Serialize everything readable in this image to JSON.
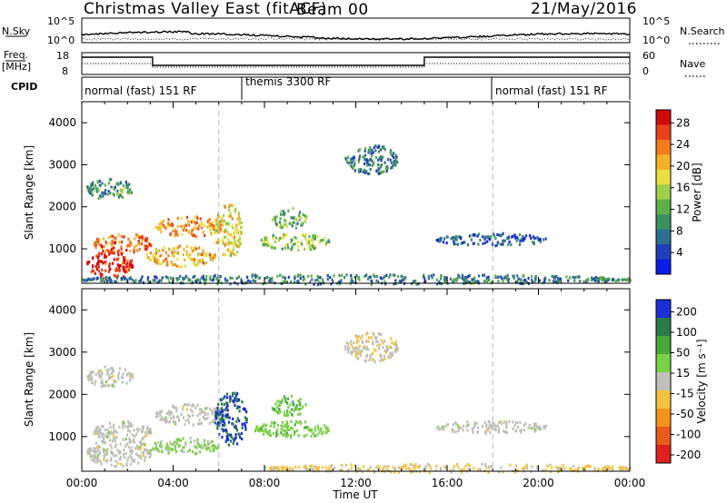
{
  "header": {
    "title": "Christmas Valley East (fitACF)",
    "beam": "Beam 00",
    "date": "21/May/2016"
  },
  "top_panels": {
    "nsky_label": "N.Sky",
    "nsky_ticks": [
      "10^5",
      "10^0"
    ],
    "nsearch_label": "N.Search",
    "nsearch_ticks": [
      "10^5",
      "10^0"
    ],
    "freq_label": "Freq.",
    "freq_unit": "[MHz]",
    "freq_ticks": [
      "18",
      "8"
    ],
    "nave_label": "Nave",
    "nave_ticks": [
      "60",
      "0"
    ],
    "cpid_label": "CPID",
    "cpid_segments": [
      {
        "label": "normal (fast) 151 RF",
        "start_hour": 0
      },
      {
        "label": "themis 3300 RF",
        "start_hour": 6
      },
      {
        "label": "normal (fast) 151 RF",
        "start_hour": 18
      }
    ]
  },
  "chart_data": [
    {
      "type": "heatmap",
      "panel": "power",
      "ylabel": "Slant Range [km]",
      "xlabel": "",
      "ylim": [
        180,
        4500
      ],
      "yticks": [
        1000,
        2000,
        3000,
        4000
      ],
      "xlim_hours": [
        0,
        24
      ],
      "colorbar": {
        "label": "Power [dB]",
        "range": [
          0,
          30
        ],
        "ticks": [
          "4",
          "8",
          "12",
          "16",
          "20",
          "24",
          "28"
        ],
        "colors": [
          "#0a1ee6",
          "#1f3fb8",
          "#2e6f8f",
          "#3d8f5f",
          "#5fae4a",
          "#9ed04a",
          "#e8e040",
          "#f6b226",
          "#f47c1c",
          "#e8401a",
          "#d10a0a"
        ]
      },
      "echo_regions": [
        {
          "t_start": 0.2,
          "t_end": 2.2,
          "r_low": 300,
          "r_high": 1000,
          "power_db": 28
        },
        {
          "t_start": 0.5,
          "t_end": 3.0,
          "r_low": 900,
          "r_high": 1400,
          "power_db": 24
        },
        {
          "t_start": 0.2,
          "t_end": 2.2,
          "r_low": 2200,
          "r_high": 2700,
          "power_db": 10
        },
        {
          "t_start": 3.2,
          "t_end": 6.2,
          "r_low": 1300,
          "r_high": 1800,
          "power_db": 22
        },
        {
          "t_start": 2.8,
          "t_end": 5.8,
          "r_low": 600,
          "r_high": 1100,
          "power_db": 20
        },
        {
          "t_start": 5.8,
          "t_end": 7.0,
          "r_low": 800,
          "r_high": 2100,
          "power_db": 18
        },
        {
          "t_start": 7.8,
          "t_end": 10.8,
          "r_low": 1000,
          "r_high": 1400,
          "power_db": 14
        },
        {
          "t_start": 8.3,
          "t_end": 9.8,
          "r_low": 1500,
          "r_high": 2000,
          "power_db": 12
        },
        {
          "t_start": 11.5,
          "t_end": 13.8,
          "r_low": 2800,
          "r_high": 3500,
          "power_db": 8
        },
        {
          "t_start": 15.5,
          "t_end": 20.3,
          "r_low": 1100,
          "r_high": 1400,
          "power_db": 6
        },
        {
          "t_start": 0.0,
          "t_end": 24.0,
          "r_low": 180,
          "r_high": 420,
          "power_db": 8
        }
      ]
    },
    {
      "type": "heatmap",
      "panel": "velocity",
      "ylabel": "Slant Range [km]",
      "xlabel": "Time UT",
      "ylim": [
        180,
        4500
      ],
      "yticks": [
        1000,
        2000,
        3000,
        4000
      ],
      "xlim_hours": [
        0,
        24
      ],
      "xticks": [
        "00:00",
        "04:00",
        "08:00",
        "12:00",
        "16:00",
        "20:00",
        "00:00"
      ],
      "colorbar": {
        "label": "Velocity [m s⁻¹]",
        "range": [
          -250,
          250
        ],
        "ticks": [
          "200",
          "100",
          "50",
          "15",
          "-15",
          "-50",
          "-100",
          "-200"
        ],
        "colors": [
          "#1a2fd6",
          "#2a7a4a",
          "#49a83c",
          "#7ad046",
          "#c0c0ba",
          "#f5c340",
          "#f4941e",
          "#ea5a18",
          "#e02020"
        ]
      },
      "echo_regions": [
        {
          "t_start": 0.2,
          "t_end": 3.0,
          "r_low": 300,
          "r_high": 1000,
          "velocity_ms": 0
        },
        {
          "t_start": 0.5,
          "t_end": 3.0,
          "r_low": 900,
          "r_high": 1400,
          "velocity_ms": 0
        },
        {
          "t_start": 0.2,
          "t_end": 2.2,
          "r_low": 2200,
          "r_high": 2700,
          "velocity_ms": 0
        },
        {
          "t_start": 3.2,
          "t_end": 6.2,
          "r_low": 1300,
          "r_high": 1800,
          "velocity_ms": 0
        },
        {
          "t_start": 3.0,
          "t_end": 6.0,
          "r_low": 600,
          "r_high": 1000,
          "velocity_ms": 40
        },
        {
          "t_start": 5.8,
          "t_end": 7.2,
          "r_low": 800,
          "r_high": 2100,
          "velocity_ms": 200
        },
        {
          "t_start": 7.5,
          "t_end": 10.8,
          "r_low": 1000,
          "r_high": 1400,
          "velocity_ms": 60
        },
        {
          "t_start": 8.3,
          "t_end": 9.8,
          "r_low": 1500,
          "r_high": 2000,
          "velocity_ms": 80
        },
        {
          "t_start": 11.5,
          "t_end": 13.8,
          "r_low": 2800,
          "r_high": 3500,
          "velocity_ms": -20
        },
        {
          "t_start": 15.5,
          "t_end": 20.3,
          "r_low": 1100,
          "r_high": 1400,
          "velocity_ms": 0
        },
        {
          "t_start": 8.0,
          "t_end": 24.0,
          "r_low": 180,
          "r_high": 380,
          "velocity_ms": -40
        }
      ]
    }
  ]
}
